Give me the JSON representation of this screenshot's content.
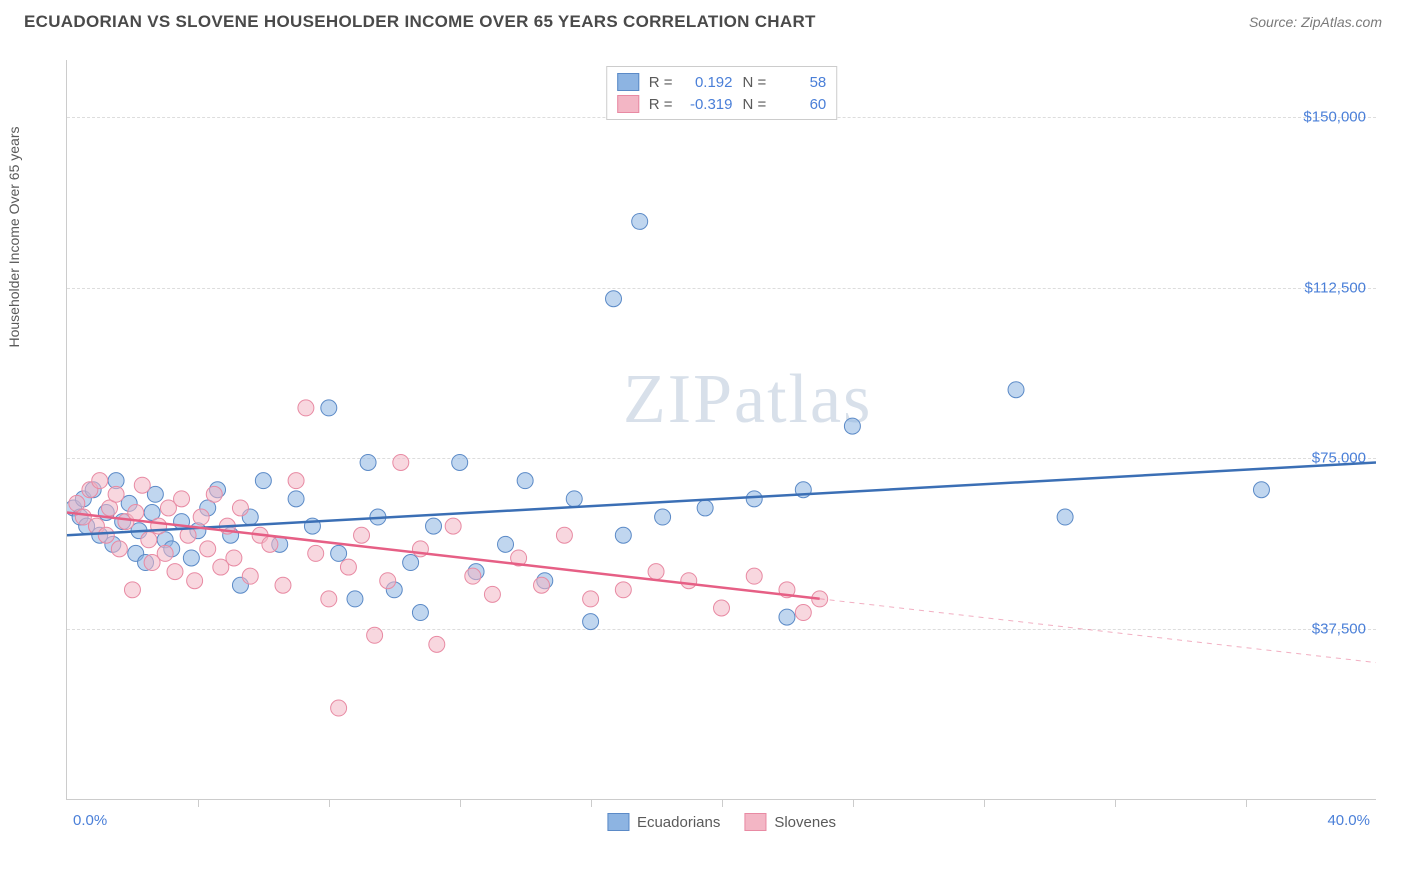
{
  "title": "ECUADORIAN VS SLOVENE HOUSEHOLDER INCOME OVER 65 YEARS CORRELATION CHART",
  "source": "Source: ZipAtlas.com",
  "watermark": "ZIPatlas",
  "y_axis_label": "Householder Income Over 65 years",
  "chart": {
    "type": "scatter",
    "xlim": [
      0,
      40
    ],
    "ylim": [
      0,
      162500
    ],
    "x_tick_step_pct": 10,
    "x_min_label": "0.0%",
    "x_max_label": "40.0%",
    "y_ticks": [
      {
        "v": 37500,
        "label": "$37,500"
      },
      {
        "v": 75000,
        "label": "$75,000"
      },
      {
        "v": 112500,
        "label": "$112,500"
      },
      {
        "v": 150000,
        "label": "$150,000"
      }
    ],
    "background_color": "#ffffff",
    "grid_color": "#dddddd",
    "axis_color": "#cccccc",
    "tick_label_color": "#4a7fd8",
    "marker_radius": 8,
    "marker_opacity": 0.55,
    "line_width": 2.5,
    "series": [
      {
        "name": "Ecuadorians",
        "color": "#8db4e2",
        "stroke": "#5b8ac7",
        "line_color": "#3b6fb5",
        "r_label": "R =",
        "r_value": "0.192",
        "n_label": "N =",
        "n_value": "58",
        "trend": {
          "x1": 0,
          "y1": 58000,
          "x2": 40,
          "y2": 74000,
          "dash_from_x": null
        },
        "points": [
          [
            0.2,
            64000
          ],
          [
            0.4,
            62000
          ],
          [
            0.5,
            66000
          ],
          [
            0.6,
            60000
          ],
          [
            0.8,
            68000
          ],
          [
            1.0,
            58000
          ],
          [
            1.2,
            63000
          ],
          [
            1.4,
            56000
          ],
          [
            1.5,
            70000
          ],
          [
            1.7,
            61000
          ],
          [
            1.9,
            65000
          ],
          [
            2.1,
            54000
          ],
          [
            2.2,
            59000
          ],
          [
            2.4,
            52000
          ],
          [
            2.6,
            63000
          ],
          [
            2.7,
            67000
          ],
          [
            3.0,
            57000
          ],
          [
            3.2,
            55000
          ],
          [
            3.5,
            61000
          ],
          [
            3.8,
            53000
          ],
          [
            4.0,
            59000
          ],
          [
            4.3,
            64000
          ],
          [
            4.6,
            68000
          ],
          [
            5.0,
            58000
          ],
          [
            5.3,
            47000
          ],
          [
            5.6,
            62000
          ],
          [
            6.0,
            70000
          ],
          [
            6.5,
            56000
          ],
          [
            7.0,
            66000
          ],
          [
            7.5,
            60000
          ],
          [
            8.0,
            86000
          ],
          [
            8.3,
            54000
          ],
          [
            8.8,
            44000
          ],
          [
            9.2,
            74000
          ],
          [
            9.5,
            62000
          ],
          [
            10.0,
            46000
          ],
          [
            10.5,
            52000
          ],
          [
            10.8,
            41000
          ],
          [
            11.2,
            60000
          ],
          [
            12.0,
            74000
          ],
          [
            12.5,
            50000
          ],
          [
            13.4,
            56000
          ],
          [
            14.0,
            70000
          ],
          [
            14.6,
            48000
          ],
          [
            15.5,
            66000
          ],
          [
            16.0,
            39000
          ],
          [
            16.7,
            110000
          ],
          [
            17.0,
            58000
          ],
          [
            17.5,
            127000
          ],
          [
            18.2,
            62000
          ],
          [
            19.5,
            64000
          ],
          [
            21.0,
            66000
          ],
          [
            22.0,
            40000
          ],
          [
            22.5,
            68000
          ],
          [
            24.0,
            82000
          ],
          [
            29.0,
            90000
          ],
          [
            30.5,
            62000
          ],
          [
            36.5,
            68000
          ]
        ]
      },
      {
        "name": "Slovenes",
        "color": "#f3b6c5",
        "stroke": "#e88aa3",
        "line_color": "#e65f85",
        "r_label": "R =",
        "r_value": "-0.319",
        "n_label": "N =",
        "n_value": "60",
        "trend": {
          "x1": 0,
          "y1": 63000,
          "x2": 40,
          "y2": 30000,
          "dash_from_x": 23
        },
        "points": [
          [
            0.3,
            65000
          ],
          [
            0.5,
            62000
          ],
          [
            0.7,
            68000
          ],
          [
            0.9,
            60000
          ],
          [
            1.0,
            70000
          ],
          [
            1.2,
            58000
          ],
          [
            1.3,
            64000
          ],
          [
            1.5,
            67000
          ],
          [
            1.6,
            55000
          ],
          [
            1.8,
            61000
          ],
          [
            2.0,
            46000
          ],
          [
            2.1,
            63000
          ],
          [
            2.3,
            69000
          ],
          [
            2.5,
            57000
          ],
          [
            2.6,
            52000
          ],
          [
            2.8,
            60000
          ],
          [
            3.0,
            54000
          ],
          [
            3.1,
            64000
          ],
          [
            3.3,
            50000
          ],
          [
            3.5,
            66000
          ],
          [
            3.7,
            58000
          ],
          [
            3.9,
            48000
          ],
          [
            4.1,
            62000
          ],
          [
            4.3,
            55000
          ],
          [
            4.5,
            67000
          ],
          [
            4.7,
            51000
          ],
          [
            4.9,
            60000
          ],
          [
            5.1,
            53000
          ],
          [
            5.3,
            64000
          ],
          [
            5.6,
            49000
          ],
          [
            5.9,
            58000
          ],
          [
            6.2,
            56000
          ],
          [
            6.6,
            47000
          ],
          [
            7.0,
            70000
          ],
          [
            7.3,
            86000
          ],
          [
            7.6,
            54000
          ],
          [
            8.0,
            44000
          ],
          [
            8.3,
            20000
          ],
          [
            8.6,
            51000
          ],
          [
            9.0,
            58000
          ],
          [
            9.4,
            36000
          ],
          [
            9.8,
            48000
          ],
          [
            10.2,
            74000
          ],
          [
            10.8,
            55000
          ],
          [
            11.3,
            34000
          ],
          [
            11.8,
            60000
          ],
          [
            12.4,
            49000
          ],
          [
            13.0,
            45000
          ],
          [
            13.8,
            53000
          ],
          [
            14.5,
            47000
          ],
          [
            15.2,
            58000
          ],
          [
            16.0,
            44000
          ],
          [
            17.0,
            46000
          ],
          [
            18.0,
            50000
          ],
          [
            19.0,
            48000
          ],
          [
            20.0,
            42000
          ],
          [
            21.0,
            49000
          ],
          [
            22.0,
            46000
          ],
          [
            22.5,
            41000
          ],
          [
            23.0,
            44000
          ]
        ]
      }
    ]
  }
}
